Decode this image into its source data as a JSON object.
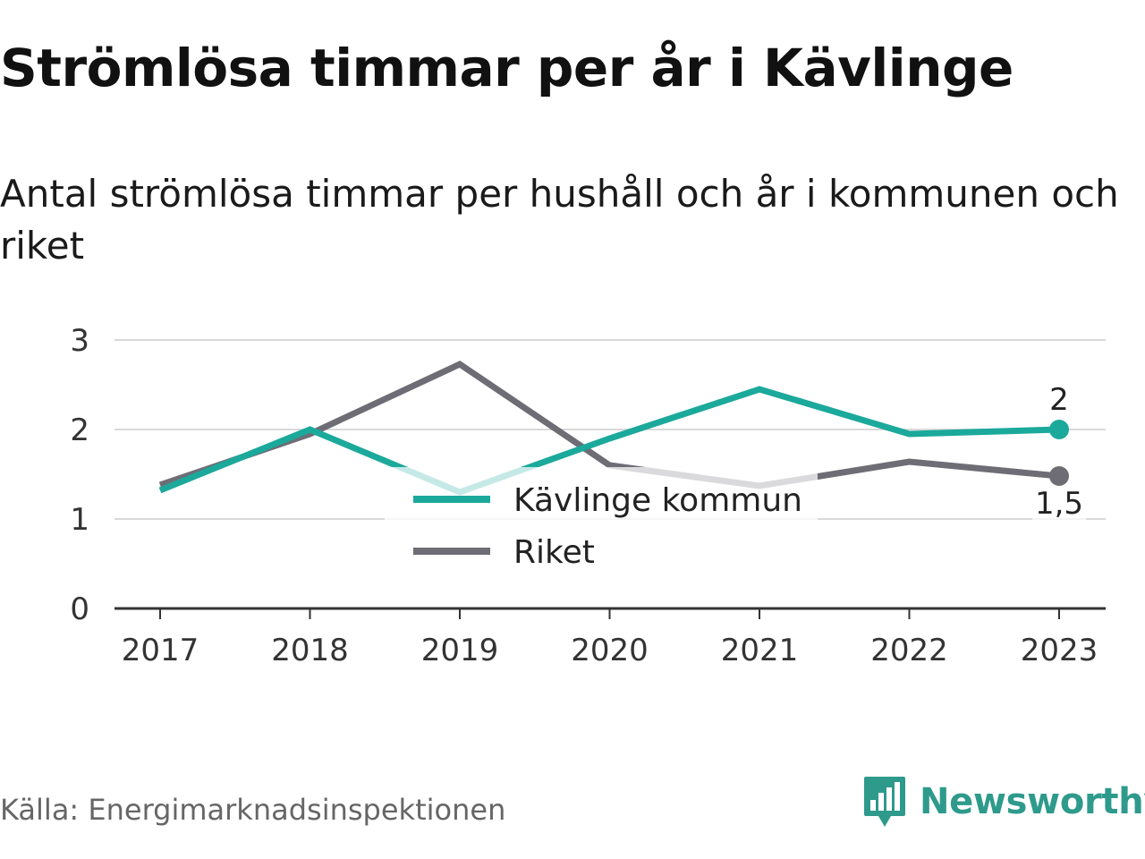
{
  "chart_data": {
    "type": "line",
    "title": "Strömlösa timmar per år i Kävlinge",
    "subtitle": "Antal strömlösa timmar per hushåll och år i kommunen och riket",
    "categories": [
      "2017",
      "2018",
      "2019",
      "2020",
      "2021",
      "2022",
      "2023"
    ],
    "ylim": [
      0,
      3
    ],
    "yticks": [
      0,
      1,
      2,
      3
    ],
    "ytick_labels": [
      "0",
      "1",
      "2",
      "3"
    ],
    "grid": true,
    "legend_position": "center",
    "series": [
      {
        "name": "Kävlinge kommun",
        "color": "#1ba99b",
        "values": [
          1.32,
          2.0,
          1.3,
          1.9,
          2.45,
          1.95,
          2.0
        ],
        "end_label": "2"
      },
      {
        "name": "Riket",
        "color": "#6e6d75",
        "values": [
          1.38,
          1.95,
          2.73,
          1.6,
          1.37,
          1.64,
          1.48
        ],
        "end_label": "1,5"
      }
    ]
  },
  "footer": {
    "source": "Källa: Energimarknadsinspektionen",
    "brand": "Newsworthy",
    "brand_icon": "bar-chart-speech-bubble-icon"
  }
}
